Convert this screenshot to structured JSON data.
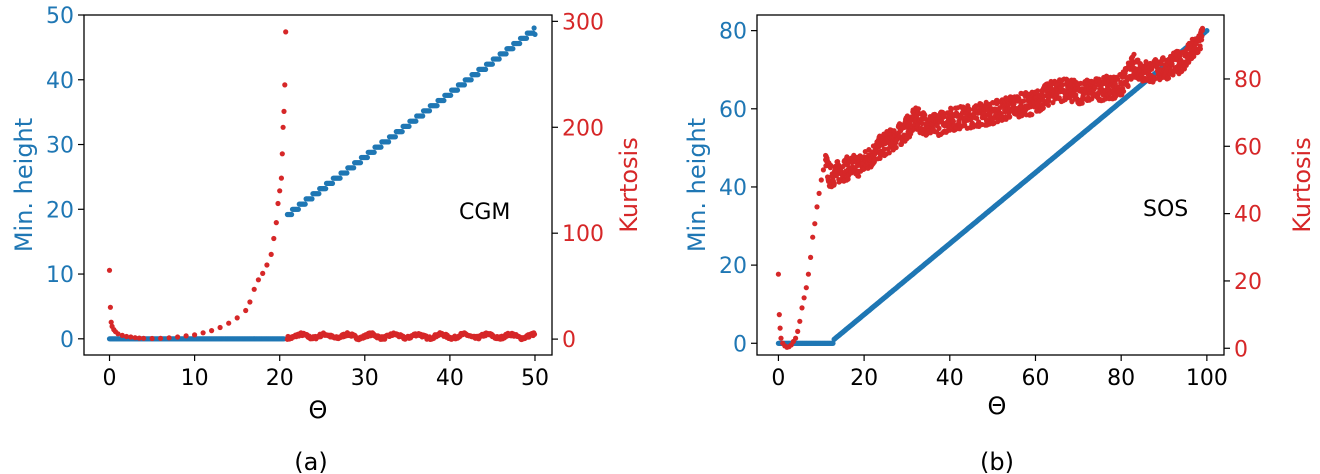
{
  "colors": {
    "left_axis": "#1f77b4",
    "right_axis": "#d62728",
    "frame": "#000000"
  },
  "chart_data": [
    {
      "type": "scatter",
      "panel_label": "(a)",
      "annotation": "CGM",
      "xlabel": "Θ",
      "ylabel_left": "Min. height",
      "ylabel_right": "Kurtosis",
      "xlim": [
        -3,
        52
      ],
      "ylim_left": [
        -2.5,
        50
      ],
      "ylim_right": [
        -15,
        306
      ],
      "xticks": [
        "0",
        "10",
        "20",
        "30",
        "40",
        "50"
      ],
      "yticks_left": [
        "0",
        "10",
        "20",
        "30",
        "40",
        "50"
      ],
      "yticks_right": [
        "0",
        "100",
        "200",
        "300"
      ],
      "series": [
        {
          "axis": "left",
          "color": "#1f77b4",
          "segments": [
            {
              "kind": "flat",
              "x_start": 0,
              "x_end": 20.5,
              "y": 0,
              "step": 0.1
            },
            {
              "kind": "staircase",
              "x_start": 20.9,
              "x_end": 49.9,
              "y_start": 19.5,
              "y_end": 48,
              "stair": 0.8,
              "step": 0.1
            }
          ],
          "points": [
            [
              50,
              47
            ]
          ]
        },
        {
          "axis": "right",
          "color": "#d62728",
          "points": [
            [
              0,
              65
            ],
            [
              0.1,
              30
            ],
            [
              0.2,
              16
            ],
            [
              0.3,
              12
            ],
            [
              0.5,
              9
            ],
            [
              0.7,
              7
            ],
            [
              1,
              5
            ],
            [
              1.5,
              3.5
            ],
            [
              2,
              2.5
            ],
            [
              2.5,
              2
            ],
            [
              3,
              1.3
            ],
            [
              3.5,
              1
            ],
            [
              4,
              0.8
            ],
            [
              5,
              0.6
            ],
            [
              6,
              0.8
            ],
            [
              7,
              1.2
            ],
            [
              8,
              2
            ],
            [
              9,
              3
            ],
            [
              10,
              4
            ],
            [
              11,
              6
            ],
            [
              12,
              8
            ],
            [
              13,
              11
            ],
            [
              14,
              15
            ],
            [
              15,
              20
            ],
            [
              16,
              27
            ],
            [
              16.5,
              35
            ],
            [
              17,
              47
            ],
            [
              17.5,
              56
            ],
            [
              18,
              62
            ],
            [
              18.5,
              70
            ],
            [
              19,
              80
            ],
            [
              19.3,
              95
            ],
            [
              19.6,
              110
            ],
            [
              19.8,
              128
            ],
            [
              20,
              140
            ],
            [
              20.2,
              152
            ],
            [
              20.3,
              175
            ],
            [
              20.4,
              200
            ],
            [
              20.5,
              215
            ],
            [
              20.6,
              240
            ],
            [
              20.7,
              290
            ]
          ],
          "noise_band": {
            "x_start": 20.9,
            "x_end": 50,
            "y_min": 1,
            "y_max": 7
          }
        }
      ]
    },
    {
      "type": "scatter",
      "panel_label": "(b)",
      "annotation": "SOS",
      "xlabel": "Θ",
      "ylabel_left": "Min. height",
      "ylabel_right": "Kurtosis",
      "xlim": [
        -5,
        104
      ],
      "ylim_left": [
        -3,
        84
      ],
      "ylim_right": [
        -2,
        99
      ],
      "xticks": [
        "0",
        "20",
        "40",
        "60",
        "80",
        "100"
      ],
      "yticks_left": [
        "0",
        "20",
        "40",
        "60",
        "80"
      ],
      "yticks_right": [
        "0",
        "20",
        "40",
        "60",
        "80"
      ],
      "series": [
        {
          "axis": "left",
          "color": "#1f77b4",
          "segments": [
            {
              "kind": "flat",
              "x_start": 0,
              "x_end": 12.8,
              "y": 0,
              "step": 0.15
            },
            {
              "kind": "line",
              "x_start": 13,
              "x_end": 100,
              "y_start": 1,
              "y_end": 80,
              "step": 0.2
            }
          ]
        },
        {
          "axis": "right",
          "color": "#d62728",
          "points": [
            [
              0,
              22
            ],
            [
              0.2,
              10
            ],
            [
              0.4,
              6
            ],
            [
              0.6,
              3
            ],
            [
              1,
              1.5
            ],
            [
              1.5,
              0.7
            ],
            [
              2,
              0.3
            ],
            [
              2.5,
              0.5
            ],
            [
              3,
              1
            ],
            [
              3.5,
              2
            ],
            [
              4,
              3
            ],
            [
              4.5,
              5
            ],
            [
              5,
              8
            ],
            [
              5.5,
              12
            ],
            [
              6,
              15
            ],
            [
              6.5,
              18
            ],
            [
              7,
              22
            ],
            [
              7.5,
              27
            ],
            [
              8,
              33
            ],
            [
              8.5,
              37
            ],
            [
              9,
              42
            ],
            [
              9.5,
              46
            ],
            [
              10,
              50
            ],
            [
              10.5,
              53
            ],
            [
              11,
              56
            ]
          ],
          "trend": [
            [
              11,
              55
            ],
            [
              12,
              51
            ],
            [
              15,
              53
            ],
            [
              20,
              55
            ],
            [
              24,
              60
            ],
            [
              28,
              63
            ],
            [
              32,
              68
            ],
            [
              36,
              66
            ],
            [
              40,
              68
            ],
            [
              45,
              69
            ],
            [
              50,
              70
            ],
            [
              55,
              72
            ],
            [
              60,
              73
            ],
            [
              65,
              77
            ],
            [
              70,
              76
            ],
            [
              75,
              77
            ],
            [
              80,
              78
            ],
            [
              83,
              84
            ],
            [
              86,
              82
            ],
            [
              90,
              83
            ],
            [
              95,
              86
            ],
            [
              99,
              92
            ]
          ],
          "noise": 3.5
        }
      ]
    }
  ]
}
